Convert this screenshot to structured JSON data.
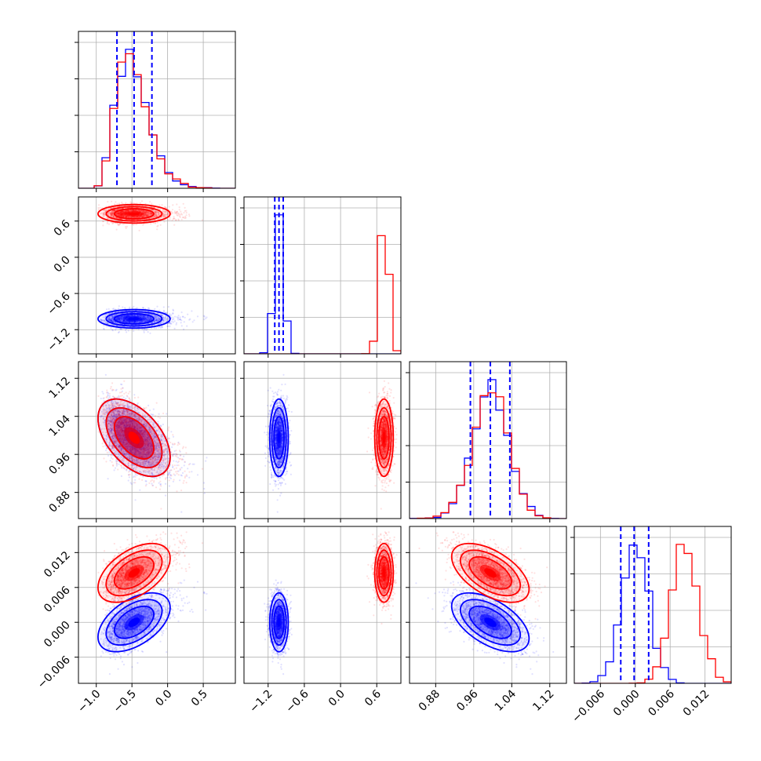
{
  "chart_data": {
    "type": "corner",
    "colors": {
      "blue": "#0000ff",
      "red": "#ff0000",
      "grid": "#b0b0b0"
    },
    "series": [
      {
        "color": "blue",
        "means": [
          -0.47,
          -1.02,
          0.995,
          0.0
        ],
        "sds": [
          0.23,
          0.07,
          0.037,
          0.0023
        ],
        "corr": [
          [
            1,
            0,
            -0.5,
            0.5
          ],
          [
            0,
            1,
            0,
            0
          ],
          [
            -0.5,
            0,
            1,
            -0.55
          ],
          [
            0.5,
            0,
            -0.55,
            1
          ]
        ]
      },
      {
        "color": "red",
        "means": [
          -0.47,
          0.72,
          0.995,
          0.0085
        ],
        "sds": [
          0.23,
          0.07,
          0.037,
          0.0023
        ],
        "corr": [
          [
            1,
            0,
            -0.5,
            0.5
          ],
          [
            0,
            1,
            0,
            0
          ],
          [
            -0.5,
            0,
            1,
            -0.55
          ],
          [
            0.5,
            0,
            -0.55,
            1
          ]
        ]
      }
    ],
    "quantile_lines": [
      [
        -0.71,
        -0.47,
        -0.22
      ],
      [
        -1.09,
        -1.02,
        -0.95
      ],
      [
        0.953,
        0.995,
        1.036
      ],
      [
        -0.0025,
        -0.0002,
        0.0023
      ]
    ],
    "ranges": [
      [
        -1.25,
        0.95
      ],
      [
        -1.6,
        1.0
      ],
      [
        0.825,
        1.155
      ],
      [
        -0.0105,
        0.0165
      ]
    ],
    "ticks": [
      {
        "values": [
          -1.0,
          -0.5,
          0.0,
          0.5
        ],
        "labels": [
          "−1.0",
          "−0.5",
          "0.0",
          "0.5"
        ]
      },
      {
        "values": [
          -1.2,
          -0.6,
          0.0,
          0.6
        ],
        "labels": [
          "−1.2",
          "−0.6",
          "0.0",
          "0.6"
        ]
      },
      {
        "values": [
          0.88,
          0.96,
          1.04,
          1.12
        ],
        "labels": [
          "0.88",
          "0.96",
          "1.04",
          "1.12"
        ]
      },
      {
        "values": [
          -0.006,
          0.0,
          0.006,
          0.012
        ],
        "labels": [
          "−0.006",
          "0.000",
          "0.006",
          "0.012"
        ]
      }
    ],
    "n_bins": 20,
    "n_samples": 4000,
    "grid": true
  }
}
